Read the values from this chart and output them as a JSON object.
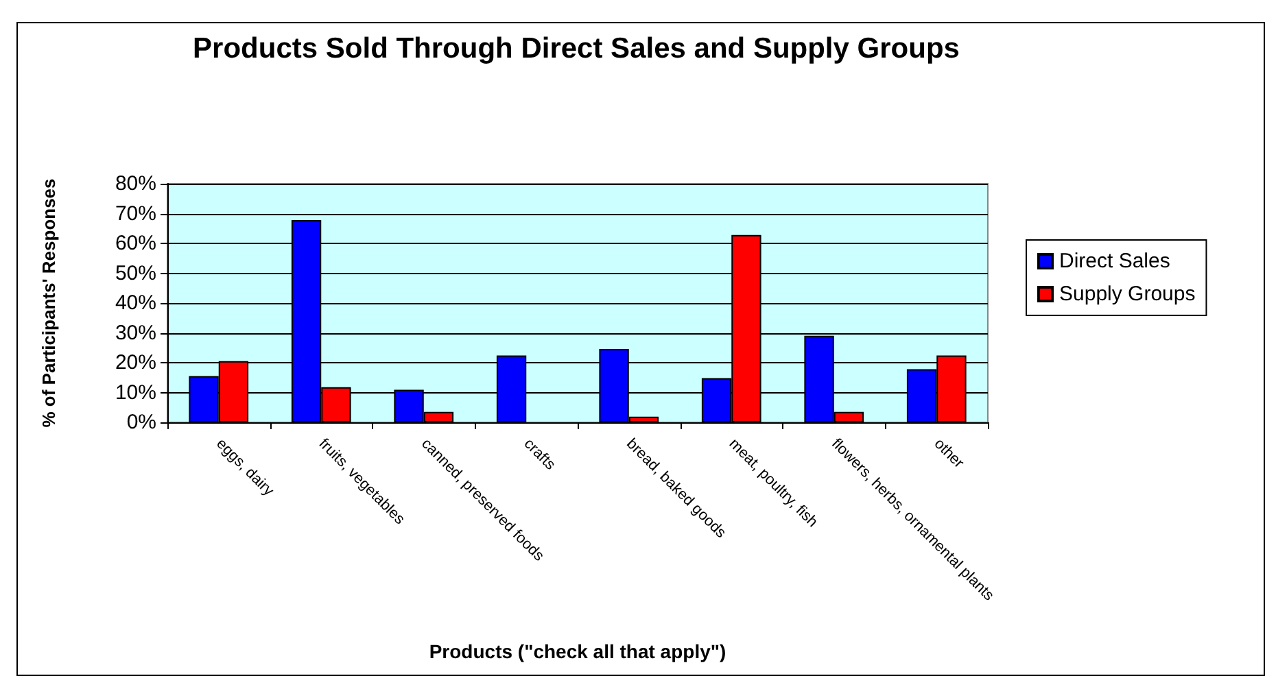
{
  "chart_data": {
    "type": "bar",
    "title": "Products Sold Through Direct Sales and Supply Groups",
    "xlabel": "Products (\"check all that apply\")",
    "ylabel": "% of Participants' Responses",
    "categories": [
      "eggs, dairy",
      "fruits, vegetables",
      "canned, preserved foods",
      "crafts",
      "bread, baked goods",
      "meat, poultry, fish",
      "flowers, herbs, ornamental plants",
      "other"
    ],
    "series": [
      {
        "name": "Direct Sales",
        "color": "#0000ff",
        "values": [
          15.5,
          67.8,
          10.9,
          22.4,
          24.6,
          14.8,
          29,
          17.8
        ]
      },
      {
        "name": "Supply Groups",
        "color": "#ff0000",
        "values": [
          20.5,
          11.8,
          3.5,
          null,
          1.9,
          62.8,
          3.5,
          22.4
        ]
      }
    ],
    "ylim": [
      0,
      80
    ],
    "yticks": [
      {
        "value": 0,
        "label": "0%"
      },
      {
        "value": 10,
        "label": "10%"
      },
      {
        "value": 20,
        "label": "20%"
      },
      {
        "value": 30,
        "label": "30%"
      },
      {
        "value": 40,
        "label": "40%"
      },
      {
        "value": 50,
        "label": "50%"
      },
      {
        "value": 60,
        "label": "60%"
      },
      {
        "value": 70,
        "label": "70%"
      },
      {
        "value": 80,
        "label": "80%"
      }
    ],
    "grid": "y",
    "legend": "right"
  }
}
